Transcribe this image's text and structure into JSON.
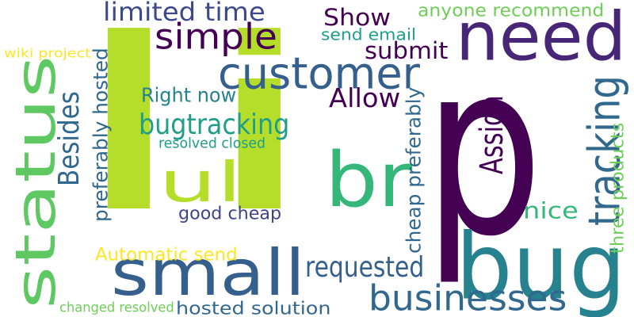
{
  "colors": {
    "background": "#ffffff",
    "dark_purple": "#440154",
    "indigo": "#414487",
    "blue": "#31688e",
    "steel": "#355f8d",
    "teal": "#26828e",
    "teal_green": "#1f9e89",
    "green": "#35b779",
    "light_green": "#6ece58",
    "lime": "#b5de2b",
    "yellow": "#fde725"
  },
  "words": [
    {
      "text": "li",
      "color": "#b5de2b"
    },
    {
      "text": "p",
      "color": "#440154"
    },
    {
      "text": "bug",
      "color": "#26828e"
    },
    {
      "text": "status",
      "color": "#5ec962"
    },
    {
      "text": "small",
      "color": "#355f8d"
    },
    {
      "text": "need",
      "color": "#482677"
    },
    {
      "text": "customer",
      "color": "#355f8d"
    },
    {
      "text": "br",
      "color": "#35b779"
    },
    {
      "text": "ul",
      "color": "#b5de2b"
    },
    {
      "text": "businesses",
      "color": "#31688e"
    },
    {
      "text": "tracking",
      "color": "#31688e"
    },
    {
      "text": "simple",
      "color": "#440154"
    },
    {
      "text": "requested",
      "color": "#355f8d"
    },
    {
      "text": "limited time",
      "color": "#3e4989"
    },
    {
      "text": "bugtracking",
      "color": "#1f9e89"
    },
    {
      "text": "Allow",
      "color": "#440154"
    },
    {
      "text": "submit",
      "color": "#440154"
    },
    {
      "text": "Show",
      "color": "#440154"
    },
    {
      "text": "Assign",
      "color": "#440154"
    },
    {
      "text": "Besides",
      "color": "#31688e"
    },
    {
      "text": "Right now",
      "color": "#26828e"
    },
    {
      "text": "nice",
      "color": "#35b779"
    },
    {
      "text": "hosted solution",
      "color": "#31688e"
    },
    {
      "text": "good cheap",
      "color": "#414487"
    },
    {
      "text": "anyone recommend",
      "color": "#6ece58"
    },
    {
      "text": "send email",
      "color": "#1f9e89"
    },
    {
      "text": "Automatic send",
      "color": "#fde725"
    },
    {
      "text": "preferably hosted",
      "color": "#31688e"
    },
    {
      "text": "cheap preferably",
      "color": "#31688e"
    },
    {
      "text": "three products",
      "color": "#6ece58"
    },
    {
      "text": "resolved closed",
      "color": "#1f9e89"
    },
    {
      "text": "wiki project",
      "color": "#fde725"
    },
    {
      "text": "changed resolved",
      "color": "#6ece58"
    }
  ]
}
